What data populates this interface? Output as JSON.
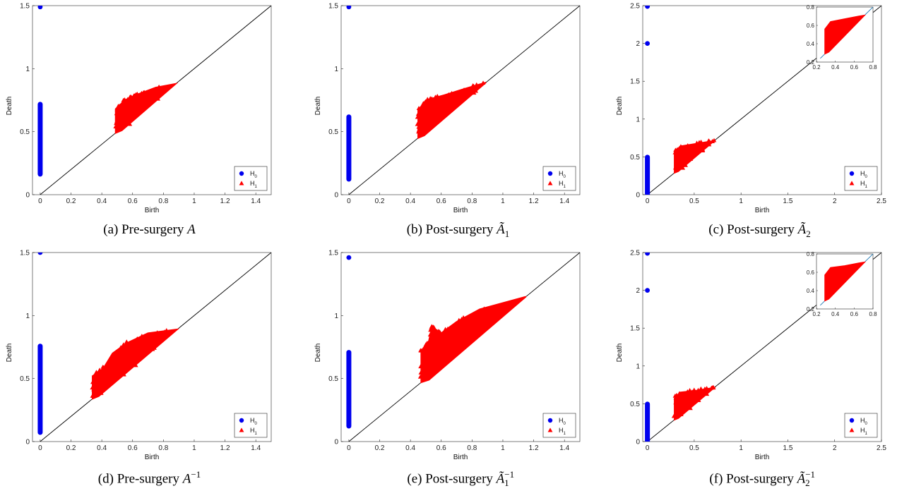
{
  "chart_data": [
    {
      "id": "a",
      "type": "scatter",
      "caption_prefix": "(a) Pre-surgery",
      "caption_symbol": "A",
      "caption_tilde": false,
      "caption_sub": "",
      "caption_sup": "",
      "xlabel": "Birth",
      "ylabel": "Death",
      "xlim": [
        -0.05,
        1.5
      ],
      "ylim": [
        0,
        1.5
      ],
      "xticks": [
        0,
        0.2,
        0.4,
        0.6,
        0.8,
        1,
        1.2,
        1.4
      ],
      "xtick_labels": [
        "0",
        "0.2",
        "0.4",
        "0.6",
        "0.8",
        "1",
        "1.2",
        "1.4"
      ],
      "yticks": [
        0,
        0.5,
        1,
        1.5
      ],
      "ytick_labels": [
        "0",
        "0.5",
        "1",
        "1.5"
      ],
      "diagonal": true,
      "legend": [
        "H0",
        "H1"
      ],
      "h0": {
        "x": 0,
        "bar": [
          0.16,
          0.72
        ],
        "points": [
          1.49
        ]
      },
      "h1": {
        "shape": [
          [
            0.49,
            0.49
          ],
          [
            0.49,
            0.68
          ],
          [
            0.55,
            0.75
          ],
          [
            0.62,
            0.79
          ],
          [
            0.75,
            0.85
          ],
          [
            0.88,
            0.88
          ],
          [
            0.53,
            0.51
          ]
        ]
      },
      "inset": null
    },
    {
      "id": "b",
      "type": "scatter",
      "caption_prefix": "(b) Post-surgery",
      "caption_symbol": "A",
      "caption_tilde": true,
      "caption_sub": "1",
      "caption_sup": "",
      "xlabel": "Birth",
      "ylabel": "Death",
      "xlim": [
        -0.05,
        1.5
      ],
      "ylim": [
        0,
        1.5
      ],
      "xticks": [
        0,
        0.2,
        0.4,
        0.6,
        0.8,
        1,
        1.2,
        1.4
      ],
      "xtick_labels": [
        "0",
        "0.2",
        "0.4",
        "0.6",
        "0.8",
        "1",
        "1.2",
        "1.4"
      ],
      "yticks": [
        0,
        0.5,
        1,
        1.5
      ],
      "ytick_labels": [
        "0",
        "0.5",
        "1",
        "1.5"
      ],
      "diagonal": true,
      "legend": [
        "H0",
        "H1"
      ],
      "h0": {
        "x": 0,
        "bar": [
          0.12,
          0.62
        ],
        "points": [
          1.49
        ]
      },
      "h1": {
        "shape": [
          [
            0.45,
            0.45
          ],
          [
            0.45,
            0.67
          ],
          [
            0.5,
            0.75
          ],
          [
            0.62,
            0.79
          ],
          [
            0.75,
            0.84
          ],
          [
            0.89,
            0.89
          ],
          [
            0.49,
            0.47
          ]
        ]
      },
      "inset": null
    },
    {
      "id": "c",
      "type": "scatter",
      "caption_prefix": "(c) Post-surgery",
      "caption_symbol": "A",
      "caption_tilde": true,
      "caption_sub": "2",
      "caption_sup": "",
      "xlabel": "Birth",
      "ylabel": "Death",
      "xlim": [
        -0.05,
        2.5
      ],
      "ylim": [
        0,
        2.5
      ],
      "xticks": [
        0,
        0.5,
        1,
        1.5,
        2,
        2.5
      ],
      "xtick_labels": [
        "0",
        "0.5",
        "1",
        "1.5",
        "2",
        "2.5"
      ],
      "yticks": [
        0,
        0.5,
        1,
        1.5,
        2,
        2.5
      ],
      "ytick_labels": [
        "0",
        "0.5",
        "1",
        "1.5",
        "2",
        "2.5"
      ],
      "diagonal": true,
      "legend": [
        "H0",
        "H1"
      ],
      "h0": {
        "x": 0,
        "bar": [
          0.0,
          0.5
        ],
        "points": [
          2.0,
          2.49
        ]
      },
      "h1": {
        "shape": [
          [
            0.29,
            0.29
          ],
          [
            0.29,
            0.56
          ],
          [
            0.35,
            0.64
          ],
          [
            0.5,
            0.67
          ],
          [
            0.65,
            0.7
          ],
          [
            0.71,
            0.71
          ],
          [
            0.33,
            0.31
          ]
        ]
      },
      "inset": {
        "xlim": [
          0.2,
          0.8
        ],
        "ylim": [
          0.2,
          0.8
        ],
        "xticks": [
          0.2,
          0.4,
          0.6,
          0.8
        ],
        "xtick_labels": [
          "0.2",
          "0.4",
          "0.6",
          "0.8"
        ],
        "yticks": [
          0.2,
          0.4,
          0.6,
          0.8
        ],
        "ytick_labels": [
          "0.2",
          "0.4",
          "0.6",
          "0.8"
        ]
      }
    },
    {
      "id": "d",
      "type": "scatter",
      "caption_prefix": "(d) Pre-surgery",
      "caption_symbol": "A",
      "caption_tilde": false,
      "caption_sub": "",
      "caption_sup": "−1",
      "xlabel": "Birth",
      "ylabel": "Death",
      "xlim": [
        -0.05,
        1.5
      ],
      "ylim": [
        0,
        1.5
      ],
      "xticks": [
        0,
        0.2,
        0.4,
        0.6,
        0.8,
        1,
        1.2,
        1.4
      ],
      "xtick_labels": [
        "0",
        "0.2",
        "0.4",
        "0.6",
        "0.8",
        "1",
        "1.2",
        "1.4"
      ],
      "yticks": [
        0,
        0.5,
        1,
        1.5
      ],
      "ytick_labels": [
        "0",
        "0.5",
        "1",
        "1.5"
      ],
      "diagonal": true,
      "legend": [
        "H0",
        "H1"
      ],
      "h0": {
        "x": 0,
        "bar": [
          0.07,
          0.76
        ],
        "points": [
          1.5
        ]
      },
      "h1": {
        "shape": [
          [
            0.34,
            0.34
          ],
          [
            0.34,
            0.52
          ],
          [
            0.41,
            0.58
          ],
          [
            0.47,
            0.7
          ],
          [
            0.56,
            0.78
          ],
          [
            0.7,
            0.86
          ],
          [
            0.89,
            0.89
          ],
          [
            0.38,
            0.36
          ]
        ]
      },
      "inset": null
    },
    {
      "id": "e",
      "type": "scatter",
      "caption_prefix": "(e) Post-surgery",
      "caption_symbol": "A",
      "caption_tilde": true,
      "caption_sub": "1",
      "caption_sup": "−1",
      "xlabel": "Birth",
      "ylabel": "Death",
      "xlim": [
        -0.05,
        1.5
      ],
      "ylim": [
        0,
        1.5
      ],
      "xticks": [
        0,
        0.2,
        0.4,
        0.6,
        0.8,
        1,
        1.2,
        1.4
      ],
      "xtick_labels": [
        "0",
        "0.2",
        "0.4",
        "0.6",
        "0.8",
        "1",
        "1.2",
        "1.4"
      ],
      "yticks": [
        0,
        0.5,
        1,
        1.5
      ],
      "ytick_labels": [
        "0",
        "0.5",
        "1",
        "1.5"
      ],
      "diagonal": true,
      "legend": [
        "H0",
        "H1"
      ],
      "h0": {
        "x": 0,
        "bar": [
          0.12,
          0.71
        ],
        "points": [
          1.46
        ]
      },
      "h1": {
        "shape": [
          [
            0.47,
            0.47
          ],
          [
            0.47,
            0.72
          ],
          [
            0.52,
            0.8
          ],
          [
            0.54,
            0.91
          ],
          [
            0.6,
            0.86
          ],
          [
            0.7,
            0.95
          ],
          [
            0.85,
            1.05
          ],
          [
            1.15,
            1.15
          ],
          [
            0.52,
            0.49
          ]
        ]
      },
      "inset": null
    },
    {
      "id": "f",
      "type": "scatter",
      "caption_prefix": "(f) Post-surgery",
      "caption_symbol": "A",
      "caption_tilde": true,
      "caption_sub": "2",
      "caption_sup": "−1",
      "xlabel": "Birth",
      "ylabel": "Death",
      "xlim": [
        -0.05,
        2.5
      ],
      "ylim": [
        0,
        2.5
      ],
      "xticks": [
        0,
        0.5,
        1,
        1.5,
        2,
        2.5
      ],
      "xtick_labels": [
        "0",
        "0.5",
        "1",
        "1.5",
        "2",
        "2.5"
      ],
      "yticks": [
        0,
        0.5,
        1,
        1.5,
        2,
        2.5
      ],
      "ytick_labels": [
        "0",
        "0.5",
        "1",
        "1.5",
        "2",
        "2.5"
      ],
      "diagonal": true,
      "legend": [
        "H0",
        "H1"
      ],
      "h0": {
        "x": 0,
        "bar": [
          0.0,
          0.5
        ],
        "points": [
          2.0,
          2.49
        ]
      },
      "h1": {
        "shape": [
          [
            0.29,
            0.29
          ],
          [
            0.29,
            0.57
          ],
          [
            0.35,
            0.65
          ],
          [
            0.5,
            0.67
          ],
          [
            0.65,
            0.7
          ],
          [
            0.71,
            0.71
          ],
          [
            0.33,
            0.31
          ]
        ]
      },
      "inset": {
        "xlim": [
          0.2,
          0.8
        ],
        "ylim": [
          0.2,
          0.8
        ],
        "xticks": [
          0.2,
          0.4,
          0.6,
          0.8
        ],
        "xtick_labels": [
          "0.2",
          "0.4",
          "0.6",
          "0.8"
        ],
        "yticks": [
          0.2,
          0.4,
          0.6,
          0.8
        ],
        "ytick_labels": [
          "0.2",
          "0.4",
          "0.6",
          "0.8"
        ]
      }
    }
  ],
  "colors": {
    "h0": "#0000ee",
    "h1": "#ff0000",
    "diagonal": "#000000",
    "inset_diagonal": "#1f77b4"
  }
}
